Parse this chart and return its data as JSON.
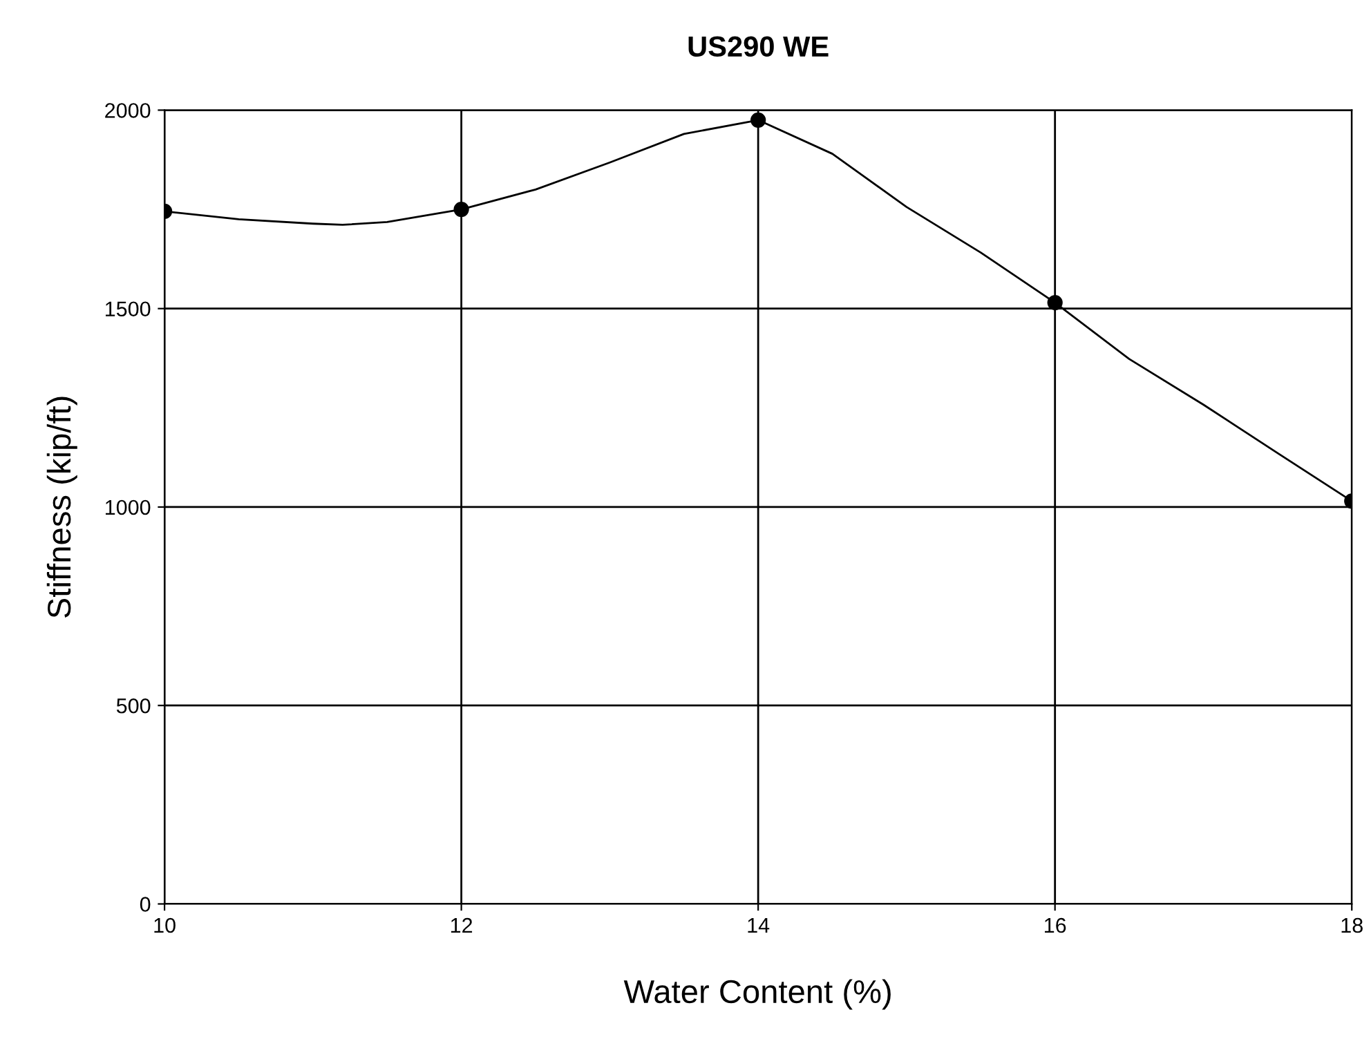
{
  "chart_data": {
    "type": "line",
    "title": "US290 WE",
    "xlabel": "Water Content (%)",
    "ylabel": "Stiffness (kip/ft)",
    "x": [
      10,
      12,
      14,
      16,
      18
    ],
    "series": [
      {
        "color": "#000000",
        "marker": "none",
        "x": [
          10,
          10.5,
          11,
          11.2,
          11.5,
          12,
          12.5,
          13,
          13.5,
          14,
          14.5,
          15,
          15.5,
          16,
          16.5,
          17,
          17.5,
          18
        ],
        "values": [
          1745,
          1725,
          1714,
          1711,
          1718,
          1750,
          1800,
          1868,
          1940,
          1975,
          1890,
          1756,
          1641,
          1515,
          1373,
          1258,
          1136,
          1015
        ]
      },
      {
        "type": "scatter",
        "color": "#000000",
        "marker": "circle",
        "values": [
          1745,
          1750,
          1975,
          1515,
          1015
        ]
      }
    ],
    "xlim": [
      10,
      18
    ],
    "xticks": [
      10,
      12,
      14,
      16,
      18
    ],
    "ylim": [
      0,
      2000
    ],
    "yticks": [
      0,
      500,
      1000,
      1500,
      2000
    ],
    "grid": true,
    "line_style": "solid",
    "legend": false
  }
}
